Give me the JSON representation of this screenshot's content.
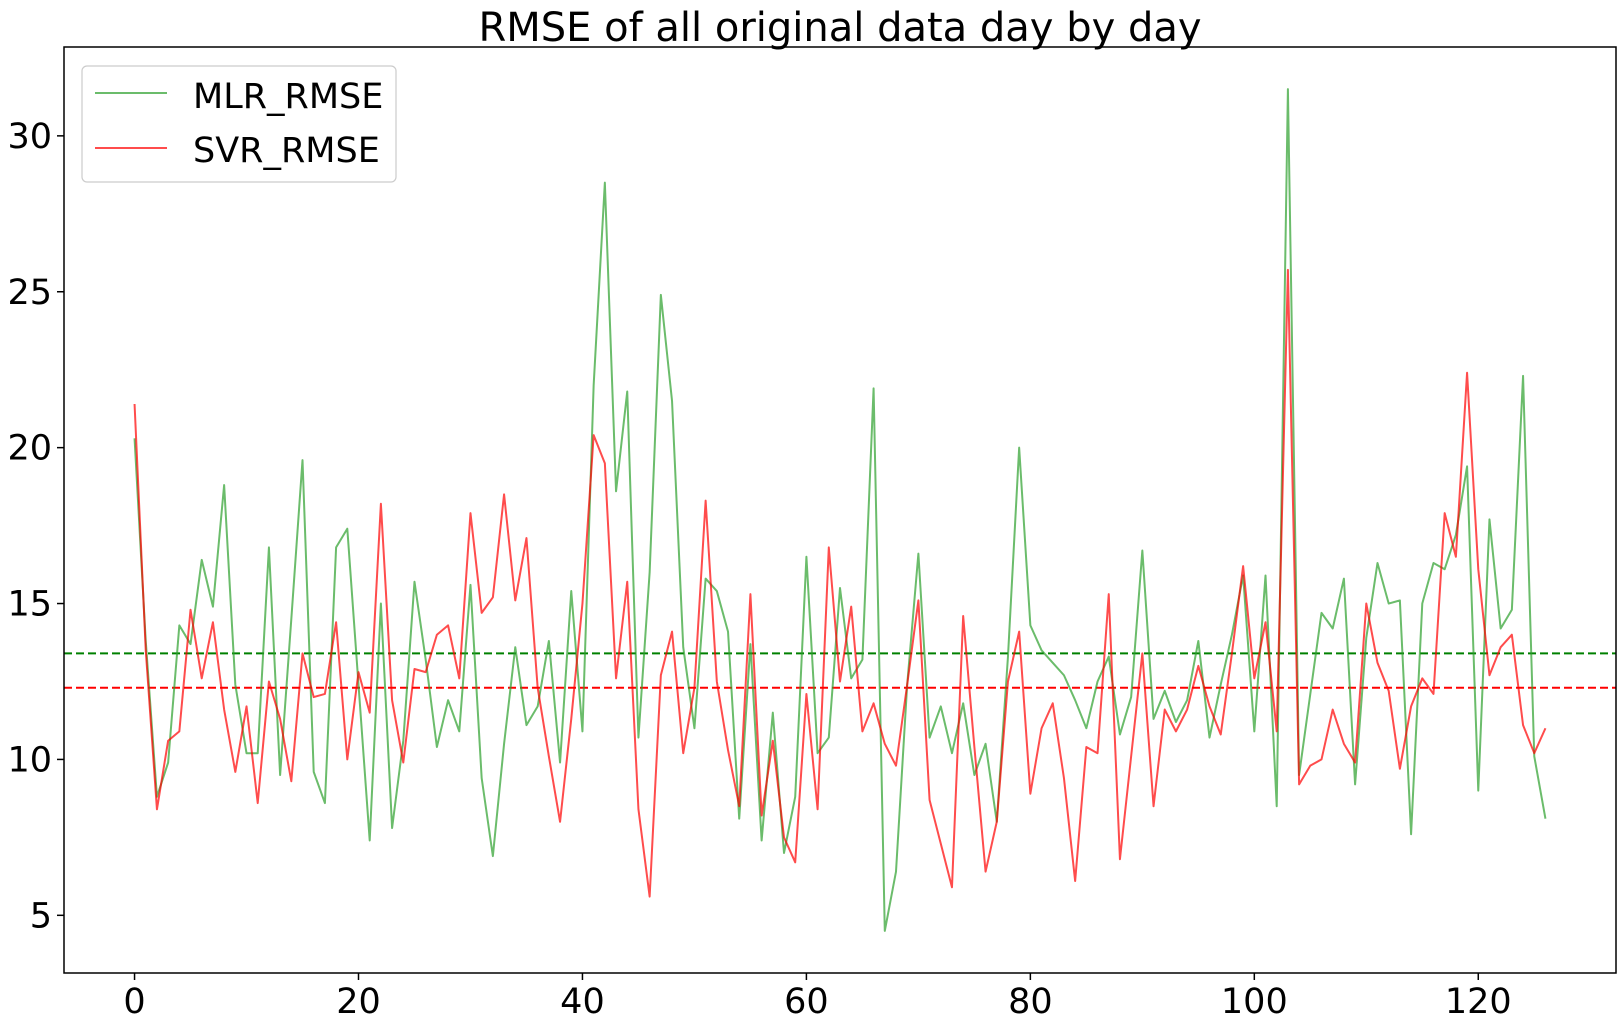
{
  "chart_data": {
    "type": "line",
    "title": "RMSE of all original data day by day",
    "xlabel": "",
    "ylabel": "",
    "xlim": [
      -6.3,
      132.3
    ],
    "ylim": [
      3.15,
      32.85
    ],
    "x_ticks": [
      0,
      20,
      40,
      60,
      80,
      100,
      120
    ],
    "y_ticks": [
      5,
      10,
      15,
      20,
      25,
      30
    ],
    "x_tick_labels": [
      "0",
      "20",
      "40",
      "60",
      "80",
      "100",
      "120"
    ],
    "y_tick_labels": [
      "5",
      "10",
      "15",
      "20",
      "25",
      "30"
    ],
    "grid": false,
    "legend": "upper left",
    "series": [
      {
        "name": "MLR_RMSE",
        "color": "#2ca02c",
        "values": [
          20.3,
          13.8,
          8.8,
          9.9,
          14.3,
          13.7,
          16.4,
          14.9,
          18.8,
          12.4,
          10.2,
          10.2,
          16.8,
          9.5,
          14.5,
          19.6,
          9.6,
          8.6,
          16.8,
          17.4,
          12.4,
          7.4,
          15.0,
          7.8,
          10.6,
          15.7,
          13.2,
          10.4,
          11.9,
          10.9,
          15.6,
          9.4,
          6.9,
          10.5,
          13.6,
          11.1,
          11.7,
          13.8,
          9.9,
          15.4,
          10.9,
          22.0,
          28.5,
          18.6,
          21.8,
          10.7,
          16.0,
          24.9,
          21.5,
          13.6,
          11.0,
          15.8,
          15.4,
          14.1,
          8.1,
          13.7,
          7.4,
          11.5,
          7.0,
          8.8,
          16.5,
          10.2,
          10.7,
          15.5,
          12.6,
          13.2,
          21.9,
          4.5,
          6.4,
          12.4,
          16.6,
          10.7,
          11.7,
          10.2,
          11.8,
          9.5,
          10.5,
          8.0,
          13.3,
          20.0,
          14.3,
          13.5,
          13.1,
          12.7,
          11.9,
          11.0,
          12.5,
          13.3,
          10.8,
          12.0,
          16.7,
          11.3,
          12.2,
          11.2,
          11.9,
          13.8,
          10.7,
          12.4,
          14.0,
          15.9,
          10.9,
          15.9,
          8.5,
          31.5,
          9.5,
          12.1,
          14.7,
          14.2,
          15.8,
          9.2,
          13.9,
          16.3,
          15.0,
          15.1,
          7.6,
          15.0,
          16.3,
          16.1,
          17.2,
          19.4,
          9.0,
          17.7,
          14.2,
          14.8,
          22.3,
          10.1,
          8.1
        ]
      },
      {
        "name": "SVR_RMSE",
        "color": "#ff0000",
        "values": [
          21.4,
          13.5,
          8.4,
          10.6,
          10.9,
          14.8,
          12.6,
          14.4,
          11.6,
          9.6,
          11.7,
          8.6,
          12.5,
          11.3,
          9.3,
          13.4,
          12.0,
          12.1,
          14.4,
          10.0,
          12.8,
          11.5,
          18.2,
          11.9,
          9.9,
          12.9,
          12.8,
          14.0,
          14.3,
          12.6,
          17.9,
          14.7,
          15.2,
          18.5,
          15.1,
          17.1,
          12.3,
          10.1,
          8.0,
          11.3,
          15.0,
          20.4,
          19.5,
          12.6,
          15.7,
          8.4,
          5.6,
          12.7,
          14.1,
          10.2,
          12.3,
          18.3,
          12.5,
          10.3,
          8.5,
          15.3,
          8.2,
          10.6,
          7.5,
          6.7,
          12.1,
          8.4,
          16.8,
          12.5,
          14.9,
          10.9,
          11.8,
          10.5,
          9.8,
          12.4,
          15.1,
          8.7,
          7.3,
          5.9,
          14.6,
          10.4,
          6.4,
          8.0,
          12.5,
          14.1,
          8.9,
          11.0,
          11.8,
          9.4,
          6.1,
          10.4,
          10.2,
          15.3,
          6.8,
          10.1,
          13.4,
          8.5,
          11.6,
          10.9,
          11.6,
          13.0,
          11.7,
          10.8,
          13.4,
          16.2,
          12.6,
          14.4,
          10.9,
          25.7,
          9.2,
          9.8,
          10.0,
          11.6,
          10.5,
          9.9,
          15.0,
          13.1,
          12.2,
          9.7,
          11.7,
          12.6,
          12.1,
          17.9,
          16.5,
          22.4,
          16.1,
          12.7,
          13.6,
          14.0,
          11.1,
          10.2,
          11.0
        ]
      }
    ],
    "reference_lines": [
      {
        "series": "MLR_RMSE",
        "value": 13.4,
        "color": "#008000",
        "style": "dashed"
      },
      {
        "series": "SVR_RMSE",
        "value": 12.3,
        "color": "#ff0000",
        "style": "dashed"
      }
    ]
  }
}
